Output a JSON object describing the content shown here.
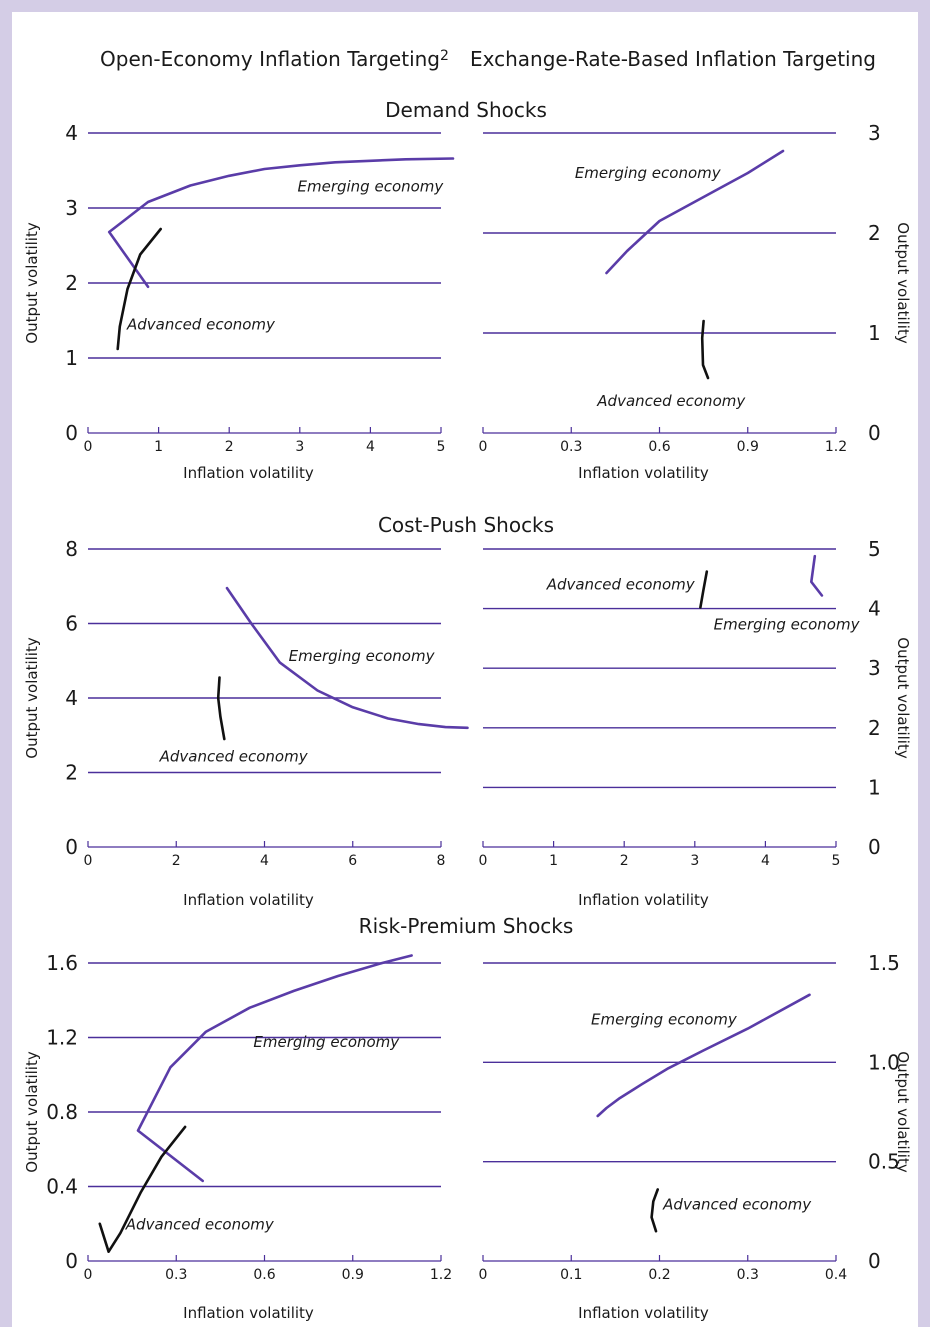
{
  "column_titles": {
    "left": "Open-Economy Inflation Targeting",
    "left_superscript": "2",
    "right": "Exchange-Rate-Based Inflation Targeting"
  },
  "shock_titles": [
    "Demand Shocks",
    "Cost-Push Shocks",
    "Risk-Premium Shocks"
  ],
  "colors": {
    "background": "#d4cde6",
    "gridline": "#4a2f9a",
    "emerging": "#5a3ca8",
    "advanced": "#111111"
  },
  "chart_data": [
    {
      "type": "line",
      "title": "Demand Shocks",
      "column": "Open-Economy Inflation Targeting",
      "xlabel": "Inflation volatility",
      "ylabel": "Output volatility",
      "xlim": [
        0,
        5
      ],
      "ylim": [
        0,
        4
      ],
      "xticks": [
        0,
        1,
        2,
        3,
        4,
        5
      ],
      "xtick_labels": [
        "0",
        "1",
        "2",
        "3",
        "4",
        "5"
      ],
      "yticks": [
        0,
        1,
        2,
        3,
        4
      ],
      "ytick_labels": [
        "0",
        "1",
        "2",
        "3",
        "4"
      ],
      "grid": "horizontal",
      "y_axis_side": "left",
      "series": [
        {
          "name": "Emerging economy",
          "color": "#5a3ca8",
          "x": [
            0.85,
            0.3,
            0.85,
            1.45,
            2.0,
            2.5,
            3.0,
            3.5,
            4.0,
            4.5,
            5.17
          ],
          "y": [
            1.95,
            2.68,
            3.08,
            3.3,
            3.43,
            3.52,
            3.57,
            3.61,
            3.63,
            3.65,
            3.66
          ]
        },
        {
          "name": "Advanced economy",
          "color": "#111111",
          "x": [
            0.42,
            0.45,
            0.56,
            0.74,
            1.03
          ],
          "y": [
            1.12,
            1.42,
            1.92,
            2.38,
            2.72
          ]
        }
      ],
      "annotations": [
        {
          "text": "Emerging economy",
          "x": 4.0,
          "y": 3.22
        },
        {
          "text": "Advanced economy",
          "x": 1.6,
          "y": 1.38
        }
      ]
    },
    {
      "type": "line",
      "title": "Demand Shocks",
      "column": "Exchange-Rate-Based Inflation Targeting",
      "xlabel": "Inflation volatility",
      "ylabel": "Output volatility",
      "xlim": [
        0,
        1.2
      ],
      "ylim": [
        0,
        3
      ],
      "xticks": [
        0,
        0.3,
        0.6,
        0.9,
        1.2
      ],
      "xtick_labels": [
        "0",
        "0.3",
        "0.6",
        "0.9",
        "1.2"
      ],
      "yticks": [
        0,
        1,
        2,
        3
      ],
      "ytick_labels": [
        "0",
        "1",
        "2",
        "3"
      ],
      "grid": "horizontal",
      "y_axis_side": "right",
      "series": [
        {
          "name": "Emerging economy",
          "color": "#5a3ca8",
          "x": [
            0.42,
            0.49,
            0.6,
            0.7,
            0.8,
            0.9,
            1.02
          ],
          "y": [
            1.6,
            1.82,
            2.12,
            2.28,
            2.44,
            2.6,
            2.82
          ]
        },
        {
          "name": "Advanced economy",
          "color": "#111111",
          "x": [
            0.75,
            0.745,
            0.748,
            0.765
          ],
          "y": [
            1.12,
            0.95,
            0.68,
            0.55
          ]
        }
      ],
      "annotations": [
        {
          "text": "Emerging economy",
          "x": 0.56,
          "y": 2.55
        },
        {
          "text": "Advanced economy",
          "x": 0.64,
          "y": 0.27
        }
      ]
    },
    {
      "type": "line",
      "title": "Cost-Push Shocks",
      "column": "Open-Economy Inflation Targeting",
      "xlabel": "Inflation volatility",
      "ylabel": "Output volatility",
      "xlim": [
        0,
        8
      ],
      "ylim": [
        0,
        8
      ],
      "xticks": [
        0,
        2,
        4,
        6,
        8
      ],
      "xtick_labels": [
        "0",
        "2",
        "4",
        "6",
        "8"
      ],
      "yticks": [
        0,
        2,
        4,
        6,
        8
      ],
      "ytick_labels": [
        "0",
        "2",
        "4",
        "6",
        "8"
      ],
      "grid": "horizontal",
      "y_axis_side": "left",
      "series": [
        {
          "name": "Emerging economy",
          "color": "#5a3ca8",
          "x": [
            3.15,
            3.7,
            4.35,
            5.2,
            6.0,
            6.8,
            7.5,
            8.1,
            8.6
          ],
          "y": [
            6.95,
            6.0,
            4.95,
            4.2,
            3.75,
            3.45,
            3.3,
            3.22,
            3.2
          ]
        },
        {
          "name": "Advanced economy",
          "color": "#111111",
          "x": [
            2.98,
            2.95,
            3.0,
            3.09
          ],
          "y": [
            4.55,
            4.0,
            3.5,
            2.9
          ]
        }
      ],
      "annotations": [
        {
          "text": "Emerging economy",
          "x": 6.2,
          "y": 5.0
        },
        {
          "text": "Advanced economy",
          "x": 3.3,
          "y": 2.3
        }
      ]
    },
    {
      "type": "line",
      "title": "Cost-Push Shocks",
      "column": "Exchange-Rate-Based Inflation Targeting",
      "xlabel": "Inflation volatility",
      "ylabel": "Output volatility",
      "xlim": [
        0,
        5
      ],
      "ylim": [
        0,
        5
      ],
      "xticks": [
        0,
        1,
        2,
        3,
        4,
        5
      ],
      "xtick_labels": [
        "0",
        "1",
        "2",
        "3",
        "4",
        "5"
      ],
      "yticks": [
        0,
        1,
        2,
        3,
        4,
        5
      ],
      "ytick_labels": [
        "0",
        "1",
        "2",
        "3",
        "4",
        "5"
      ],
      "grid": "horizontal",
      "y_axis_side": "right",
      "series": [
        {
          "name": "Emerging economy",
          "color": "#5a3ca8",
          "x": [
            4.7,
            4.65,
            4.8
          ],
          "y": [
            4.88,
            4.45,
            4.22
          ]
        },
        {
          "name": "Advanced economy",
          "color": "#111111",
          "x": [
            3.08,
            3.12,
            3.17
          ],
          "y": [
            4.02,
            4.3,
            4.62
          ]
        }
      ],
      "annotations": [
        {
          "text": "Advanced economy",
          "x": 1.95,
          "y": 4.32
        },
        {
          "text": "Emerging economy",
          "x": 4.3,
          "y": 3.65
        }
      ]
    },
    {
      "type": "line",
      "title": "Risk-Premium Shocks",
      "column": "Open-Economy Inflation Targeting",
      "xlabel": "Inflation volatility",
      "ylabel": "Output volatility",
      "xlim": [
        0,
        1.2
      ],
      "ylim": [
        0,
        1.6
      ],
      "xticks": [
        0,
        0.3,
        0.6,
        0.9,
        1.2
      ],
      "xtick_labels": [
        "0",
        "0.3",
        "0.6",
        "0.9",
        "1.2"
      ],
      "yticks": [
        0,
        0.4,
        0.8,
        1.2,
        1.6
      ],
      "ytick_labels": [
        "0",
        "0.4",
        "0.8",
        "1.2",
        "1.6"
      ],
      "grid": "horizontal",
      "y_axis_side": "left",
      "series": [
        {
          "name": "Emerging economy",
          "color": "#5a3ca8",
          "x": [
            0.39,
            0.17,
            0.28,
            0.4,
            0.55,
            0.7,
            0.85,
            1.0,
            1.1
          ],
          "y": [
            0.43,
            0.7,
            1.04,
            1.23,
            1.36,
            1.45,
            1.53,
            1.6,
            1.64
          ]
        },
        {
          "name": "Advanced economy",
          "color": "#111111",
          "x": [
            0.04,
            0.07,
            0.11,
            0.18,
            0.25,
            0.33
          ],
          "y": [
            0.2,
            0.05,
            0.15,
            0.37,
            0.56,
            0.72
          ]
        }
      ],
      "annotations": [
        {
          "text": "Emerging economy",
          "x": 0.81,
          "y": 1.15
        },
        {
          "text": "Advanced economy",
          "x": 0.38,
          "y": 0.17
        }
      ]
    },
    {
      "type": "line",
      "title": "Risk-Premium Shocks",
      "column": "Exchange-Rate-Based Inflation Targeting",
      "xlabel": "Inflation volatility",
      "ylabel": "Output volatility",
      "xlim": [
        0,
        0.4
      ],
      "ylim": [
        0,
        1.5
      ],
      "xticks": [
        0,
        0.1,
        0.2,
        0.3,
        0.4
      ],
      "xtick_labels": [
        "0",
        "0.1",
        "0.2",
        "0.3",
        "0.4"
      ],
      "yticks": [
        0,
        0.5,
        1.0,
        1.5
      ],
      "ytick_labels": [
        "0",
        "0.5",
        "1.0",
        "1.5"
      ],
      "grid": "horizontal",
      "y_axis_side": "right",
      "series": [
        {
          "name": "Emerging economy",
          "color": "#5a3ca8",
          "x": [
            0.13,
            0.14,
            0.155,
            0.18,
            0.21,
            0.25,
            0.3,
            0.37
          ],
          "y": [
            0.73,
            0.77,
            0.82,
            0.89,
            0.97,
            1.06,
            1.17,
            1.34
          ]
        },
        {
          "name": "Advanced economy",
          "color": "#111111",
          "x": [
            0.198,
            0.193,
            0.191,
            0.196
          ],
          "y": [
            0.36,
            0.3,
            0.22,
            0.15
          ]
        }
      ],
      "annotations": [
        {
          "text": "Emerging economy",
          "x": 0.205,
          "y": 1.19
        },
        {
          "text": "Advanced economy",
          "x": 0.288,
          "y": 0.26
        }
      ]
    }
  ]
}
